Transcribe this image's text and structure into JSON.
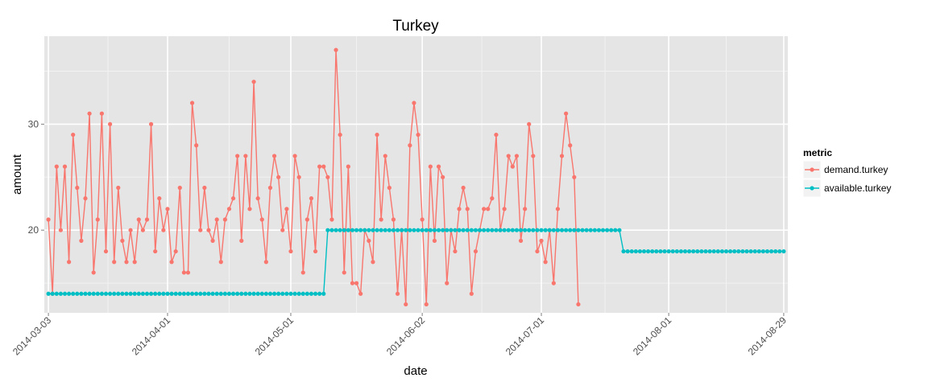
{
  "chart_data": {
    "type": "line",
    "title": "Turkey",
    "xlabel": "date",
    "ylabel": "amount",
    "x_start": "2014-03-03",
    "x_end": "2014-08-29",
    "xlim": [
      "2014-03-02",
      "2014-08-30"
    ],
    "ylim": [
      12.2,
      38.3
    ],
    "x_ticks": [
      "2014-03-03",
      "2014-04-01",
      "2014-05-01",
      "2014-06-02",
      "2014-07-01",
      "2014-08-01",
      "2014-08-29"
    ],
    "y_ticks": [
      20,
      30
    ],
    "grid": true,
    "legend": {
      "title": "metric",
      "position": "right"
    },
    "series": [
      {
        "name": "demand.turkey",
        "color": "#f8766d",
        "values": [
          21,
          14,
          26,
          20,
          26,
          17,
          29,
          24,
          19,
          23,
          31,
          16,
          21,
          31,
          18,
          30,
          17,
          24,
          19,
          17,
          20,
          17,
          21,
          20,
          21,
          30,
          18,
          23,
          20,
          22,
          17,
          18,
          24,
          16,
          16,
          32,
          28,
          20,
          24,
          20,
          19,
          21,
          17,
          21,
          22,
          23,
          27,
          19,
          27,
          22,
          34,
          23,
          21,
          17,
          24,
          27,
          25,
          20,
          22,
          18,
          27,
          25,
          16,
          21,
          23,
          18,
          26,
          26,
          25,
          21,
          37,
          29,
          16,
          26,
          15,
          15,
          14,
          20,
          19,
          17,
          29,
          21,
          27,
          24,
          21,
          14,
          20,
          13,
          28,
          32,
          29,
          21,
          13,
          26,
          19,
          26,
          25,
          15,
          20,
          18,
          22,
          24,
          22,
          14,
          18,
          20,
          22,
          22,
          23,
          29,
          20,
          22,
          27,
          26,
          27,
          19,
          22,
          30,
          27,
          18,
          19,
          17,
          20,
          15,
          22,
          27,
          31,
          28,
          25,
          13
        ]
      },
      {
        "name": "available.turkey",
        "color": "#00bfc4",
        "segments": [
          {
            "from": "2014-03-03",
            "to": "2014-05-09",
            "value": 14
          },
          {
            "from": "2014-05-10",
            "to": "2014-07-20",
            "value": 20
          },
          {
            "from": "2014-07-21",
            "to": "2014-08-29",
            "value": 18
          }
        ]
      }
    ]
  }
}
